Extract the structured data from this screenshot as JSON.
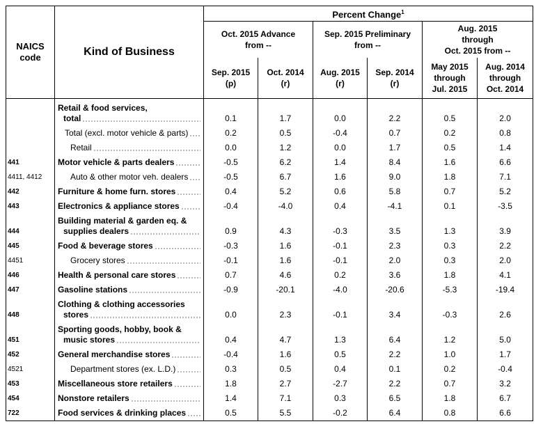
{
  "header": {
    "code": [
      "NAICS",
      "code"
    ],
    "kind": "Kind of Business",
    "percent_change": "Percent Change",
    "superscript": "1",
    "groups": [
      {
        "lines": [
          "Oct. 2015 Advance",
          "from --"
        ],
        "columns": [
          [
            "Sep. 2015",
            "(p)"
          ],
          [
            "Oct. 2014",
            "(r)"
          ]
        ]
      },
      {
        "lines": [
          "Sep. 2015 Preliminary",
          "from --"
        ],
        "columns": [
          [
            "Aug. 2015",
            "(r)"
          ],
          [
            "Sep. 2014",
            "(r)"
          ]
        ]
      },
      {
        "lines": [
          "Aug. 2015",
          "through",
          "Oct. 2015 from --"
        ],
        "columns": [
          [
            "May 2015",
            "through",
            "Jul. 2015"
          ],
          [
            "Aug. 2014",
            "through",
            "Oct. 2014"
          ]
        ]
      }
    ]
  },
  "table": {
    "rows": [
      {
        "code": null,
        "label": [
          "Retail & food services,",
          "total"
        ],
        "bold": true,
        "indent": 0,
        "values": [
          "0.1",
          "1.7",
          "0.0",
          "2.2",
          "0.5",
          "2.0"
        ]
      },
      {
        "code": null,
        "label": [
          "Total (excl. motor vehicle & parts)"
        ],
        "bold": false,
        "indent": 1,
        "values": [
          "0.2",
          "0.5",
          "-0.4",
          "0.7",
          "0.2",
          "0.8"
        ]
      },
      {
        "code": null,
        "label": [
          "Retail"
        ],
        "bold": false,
        "indent": 2,
        "values": [
          "0.0",
          "1.2",
          "0.0",
          "1.7",
          "0.5",
          "1.4"
        ]
      },
      {
        "code": "441",
        "label": [
          "Motor vehicle & parts dealers"
        ],
        "bold": true,
        "indent": 0,
        "values": [
          "-0.5",
          "6.2",
          "1.4",
          "8.4",
          "1.6",
          "6.6"
        ]
      },
      {
        "code": "4411, 4412",
        "label": [
          "Auto & other motor veh. dealers"
        ],
        "bold": false,
        "indent": 2,
        "values": [
          "-0.5",
          "6.7",
          "1.6",
          "9.0",
          "1.8",
          "7.1"
        ]
      },
      {
        "code": "442",
        "label": [
          "Furniture & home furn. stores"
        ],
        "bold": true,
        "indent": 0,
        "values": [
          "0.4",
          "5.2",
          "0.6",
          "5.8",
          "0.7",
          "5.2"
        ]
      },
      {
        "code": "443",
        "label": [
          "Electronics & appliance stores"
        ],
        "bold": true,
        "indent": 0,
        "values": [
          "-0.4",
          "-4.0",
          "0.4",
          "-4.1",
          "0.1",
          "-3.5"
        ]
      },
      {
        "code": "444",
        "label": [
          "Building material & garden eq. &",
          "supplies dealers"
        ],
        "bold": true,
        "indent": 0,
        "values": [
          "0.9",
          "4.3",
          "-0.3",
          "3.5",
          "1.3",
          "3.9"
        ]
      },
      {
        "code": "445",
        "label": [
          "Food & beverage stores"
        ],
        "bold": true,
        "indent": 0,
        "values": [
          "-0.3",
          "1.6",
          "-0.1",
          "2.3",
          "0.3",
          "2.2"
        ]
      },
      {
        "code": "4451",
        "label": [
          "Grocery stores"
        ],
        "bold": false,
        "indent": 2,
        "values": [
          "-0.1",
          "1.6",
          "-0.1",
          "2.0",
          "0.3",
          "2.0"
        ]
      },
      {
        "code": "446",
        "label": [
          "Health & personal care stores"
        ],
        "bold": true,
        "indent": 0,
        "values": [
          "0.7",
          "4.6",
          "0.2",
          "3.6",
          "1.8",
          "4.1"
        ]
      },
      {
        "code": "447",
        "label": [
          "Gasoline stations"
        ],
        "bold": true,
        "indent": 0,
        "values": [
          "-0.9",
          "-20.1",
          "-4.0",
          "-20.6",
          "-5.3",
          "-19.4"
        ]
      },
      {
        "code": "448",
        "label": [
          "Clothing & clothing accessories",
          "stores"
        ],
        "bold": true,
        "indent": 0,
        "values": [
          "0.0",
          "2.3",
          "-0.1",
          "3.4",
          "-0.3",
          "2.6"
        ]
      },
      {
        "code": "451",
        "label": [
          "Sporting goods, hobby, book &",
          "music stores"
        ],
        "bold": true,
        "indent": 0,
        "values": [
          "0.4",
          "4.7",
          "1.3",
          "6.4",
          "1.2",
          "5.0"
        ]
      },
      {
        "code": "452",
        "label": [
          "General merchandise stores"
        ],
        "bold": true,
        "indent": 0,
        "values": [
          "-0.4",
          "1.6",
          "0.5",
          "2.2",
          "1.0",
          "1.7"
        ]
      },
      {
        "code": "4521",
        "label": [
          "Department stores (ex. L.D.)"
        ],
        "bold": false,
        "indent": 2,
        "values": [
          "0.3",
          "0.5",
          "0.4",
          "0.1",
          "0.2",
          "-0.4"
        ]
      },
      {
        "code": "453",
        "label": [
          "Miscellaneous store retailers"
        ],
        "bold": true,
        "indent": 0,
        "values": [
          "1.8",
          "2.7",
          "-2.7",
          "2.2",
          "0.7",
          "3.2"
        ]
      },
      {
        "code": "454",
        "label": [
          "Nonstore retailers"
        ],
        "bold": true,
        "indent": 0,
        "values": [
          "1.4",
          "7.1",
          "0.3",
          "6.5",
          "1.8",
          "6.7"
        ]
      },
      {
        "code": "722",
        "label": [
          "Food services & drinking places"
        ],
        "bold": true,
        "indent": 0,
        "values": [
          "0.5",
          "5.5",
          "-0.2",
          "6.4",
          "0.8",
          "6.6"
        ]
      }
    ]
  }
}
